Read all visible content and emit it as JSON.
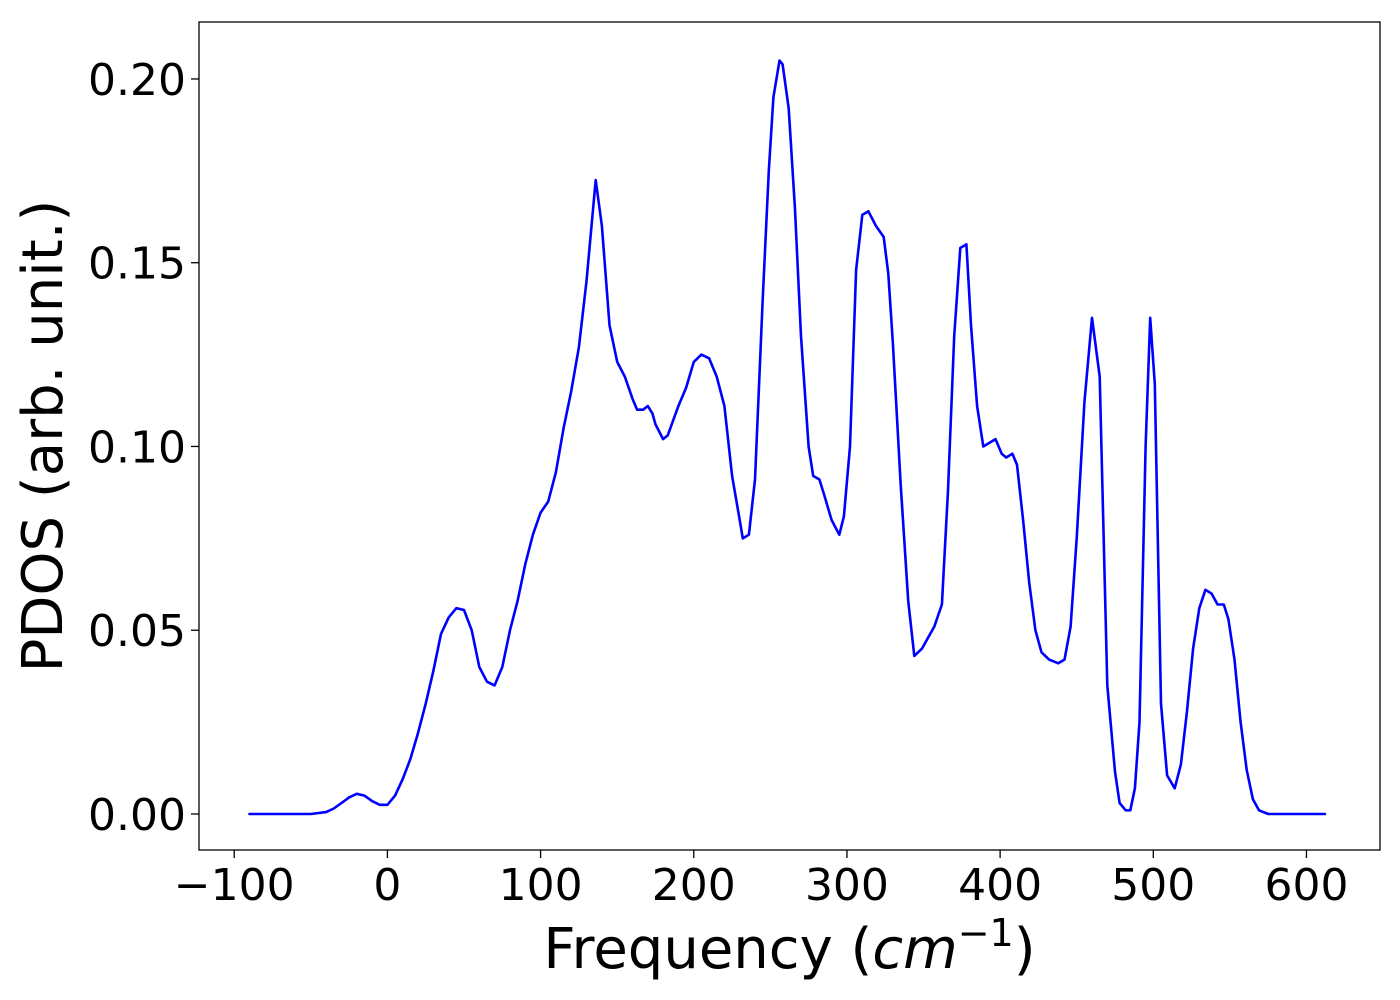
{
  "chart_data": {
    "type": "line",
    "title": "",
    "xlabel": "Frequency",
    "xlabel_unit": "cm",
    "xlabel_exponent": "−1",
    "ylabel": "PDOS (arb. unit.)",
    "xlim": [
      -123,
      648
    ],
    "ylim": [
      -0.0098,
      0.2155
    ],
    "xticks": [
      -100,
      0,
      100,
      200,
      300,
      400,
      500,
      600
    ],
    "xtick_labels": [
      "−100",
      "0",
      "100",
      "200",
      "300",
      "400",
      "500",
      "600"
    ],
    "yticks": [
      0.0,
      0.05,
      0.1,
      0.15,
      0.2
    ],
    "ytick_labels": [
      "0.00",
      "0.05",
      "0.10",
      "0.15",
      "0.20"
    ],
    "grid": false,
    "legend": "none",
    "series": [
      {
        "color": "#0000ff",
        "x": [
          -90,
          -50,
          -40,
          -35,
          -30,
          -25,
          -20,
          -15,
          -10,
          -5,
          0,
          5,
          10,
          15,
          20,
          25,
          30,
          35,
          40,
          45,
          50,
          55,
          60,
          65,
          70,
          75,
          80,
          85,
          90,
          95,
          100,
          105,
          110,
          115,
          120,
          125,
          130,
          136,
          140,
          145,
          150,
          155,
          160,
          163,
          167,
          170,
          173,
          175,
          180,
          183,
          190,
          195,
          200,
          205,
          210,
          215,
          220,
          225,
          230,
          232,
          236,
          240,
          245,
          249,
          252,
          256,
          258,
          262,
          266,
          270,
          275,
          278,
          282,
          285,
          290,
          295,
          298,
          302,
          306,
          310,
          314,
          319,
          324,
          327,
          330,
          335,
          340,
          344,
          349,
          353,
          357,
          362,
          366,
          370,
          374,
          378,
          381,
          385,
          389,
          393,
          397,
          401,
          404,
          408,
          411,
          415,
          419,
          423,
          427,
          432,
          438,
          442,
          446,
          450,
          455,
          460,
          465,
          470,
          475,
          478,
          482,
          485,
          488,
          491,
          495,
          498,
          501,
          505,
          509,
          514,
          518,
          522,
          526,
          530,
          534,
          538,
          542,
          546,
          549,
          553,
          557,
          561,
          565,
          569,
          575,
          612
        ],
        "y": [
          0,
          0,
          0.0005,
          0.0015,
          0.003,
          0.0045,
          0.0055,
          0.005,
          0.0035,
          0.0025,
          0.0025,
          0.005,
          0.0095,
          0.015,
          0.022,
          0.03,
          0.039,
          0.049,
          0.0535,
          0.056,
          0.0555,
          0.05,
          0.04,
          0.036,
          0.035,
          0.04,
          0.05,
          0.058,
          0.068,
          0.076,
          0.082,
          0.085,
          0.093,
          0.105,
          0.115,
          0.127,
          0.145,
          0.1725,
          0.16,
          0.133,
          0.123,
          0.119,
          0.113,
          0.11,
          0.11,
          0.111,
          0.109,
          0.106,
          0.102,
          0.103,
          0.111,
          0.116,
          0.123,
          0.125,
          0.124,
          0.119,
          0.111,
          0.092,
          0.08,
          0.075,
          0.076,
          0.091,
          0.14,
          0.175,
          0.195,
          0.205,
          0.204,
          0.192,
          0.165,
          0.13,
          0.1,
          0.092,
          0.091,
          0.087,
          0.08,
          0.076,
          0.081,
          0.1,
          0.148,
          0.163,
          0.164,
          0.16,
          0.157,
          0.147,
          0.128,
          0.09,
          0.058,
          0.043,
          0.045,
          0.048,
          0.051,
          0.057,
          0.088,
          0.13,
          0.154,
          0.155,
          0.133,
          0.111,
          0.1,
          0.101,
          0.102,
          0.098,
          0.097,
          0.098,
          0.095,
          0.08,
          0.063,
          0.05,
          0.044,
          0.042,
          0.041,
          0.042,
          0.051,
          0.075,
          0.112,
          0.135,
          0.119,
          0.035,
          0.0115,
          0.003,
          0.001,
          0.001,
          0.007,
          0.025,
          0.1,
          0.135,
          0.117,
          0.03,
          0.0105,
          0.007,
          0.0135,
          0.028,
          0.045,
          0.056,
          0.061,
          0.06,
          0.057,
          0.057,
          0.053,
          0.042,
          0.025,
          0.012,
          0.004,
          0.001,
          0,
          0
        ]
      }
    ]
  }
}
